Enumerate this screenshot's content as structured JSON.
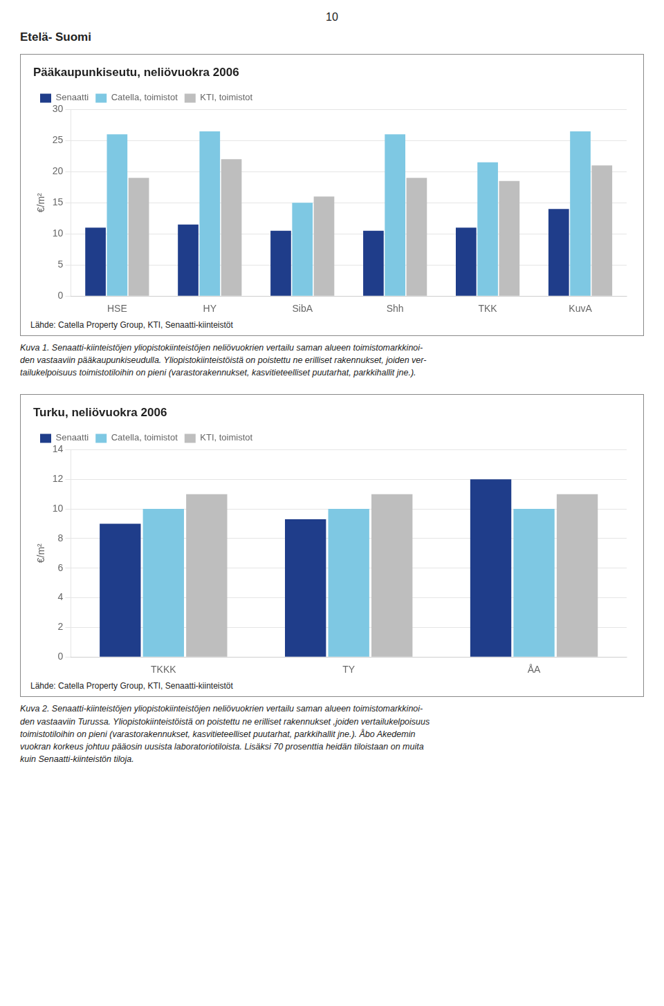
{
  "page_number": "10",
  "heading": "Etelä- Suomi",
  "chart_data": [
    {
      "type": "bar",
      "title": "Pääkaupunkiseutu, neliövuokra 2006",
      "y_label": "€/m²",
      "categories": [
        "HSE",
        "HY",
        "SibA",
        "Shh",
        "TKK",
        "KuvA"
      ],
      "series": [
        {
          "name": "Senaatti",
          "color": "#1F3D8A",
          "values": [
            11.0,
            11.5,
            10.5,
            10.5,
            11.0,
            14.0
          ]
        },
        {
          "name": "Catella, toimistot",
          "color": "#7EC8E3",
          "values": [
            26.0,
            26.5,
            15.0,
            26.0,
            21.5,
            26.5
          ]
        },
        {
          "name": "KTI, toimistot",
          "color": "#BEBEBE",
          "values": [
            19.0,
            22.0,
            16.0,
            19.0,
            18.5,
            21.0
          ]
        }
      ],
      "ylim": [
        0,
        30
      ],
      "yticks": [
        0,
        5,
        10,
        15,
        20,
        25,
        30
      ],
      "grid": "y",
      "legend": "upper left",
      "annotations": [
        "Lähde: Catella Property Group, KTI, Senaatti-kiinteistöt",
        "Kuva 1. Senaatti-kiinteistöjen yliopistokiinteistöjen neliövuokrien vertailu saman alueen  toimistomarkkinoi-\nden vastaaviin pääkaupunkiseudulla. Yliopistokiinteistöistä on poistettu ne erilliset rakennukset, joiden ver-\ntailukelpoisuus toimistotiloihin on pieni (varastorakennukset, kasvitieteelliset puutarhat, parkkihallit jne.)."
      ]
    },
    {
      "type": "bar",
      "title": "Turku, neliövuokra 2006",
      "y_label": "€/m²",
      "categories": [
        "TKKK",
        "TY",
        "ÅA"
      ],
      "series": [
        {
          "name": "Senaatti",
          "color": "#1F3D8A",
          "values": [
            9.0,
            9.3,
            12.0
          ]
        },
        {
          "name": "Catella, toimistot",
          "color": "#7EC8E3",
          "values": [
            10.0,
            10.0,
            10.0
          ]
        },
        {
          "name": "KTI, toimistot",
          "color": "#BEBEBE",
          "values": [
            11.0,
            11.0,
            11.0
          ]
        }
      ],
      "ylim": [
        0,
        14
      ],
      "yticks": [
        0,
        2,
        4,
        6,
        8,
        10,
        12,
        14
      ],
      "grid": "y",
      "legend": "upper left",
      "annotations": [
        "Lähde: Catella Property Group, KTI, Senaatti-kiinteistöt",
        "Kuva 2. Senaatti-kiinteistöjen yliopistokiinteistöjen neliövuokrien vertailu saman alueen  toimistomarkkinoi-\nden vastaaviin Turussa. Yliopistokiinteistöistä on poistettu ne erilliset rakennukset ,joiden vertailukelpoisuus\ntoimistotiloihin on pieni (varastorakennukset, kasvitieteelliset puutarhat, parkkihallit jne.). Åbo Akedemin\nvuokran korkeus johtuu pääosin uusista laboratoriotiloista. Lisäksi 70 prosenttia heidän tiloistaan on muita\nkuin Senaatti-kiinteistön tiloja."
      ]
    }
  ]
}
